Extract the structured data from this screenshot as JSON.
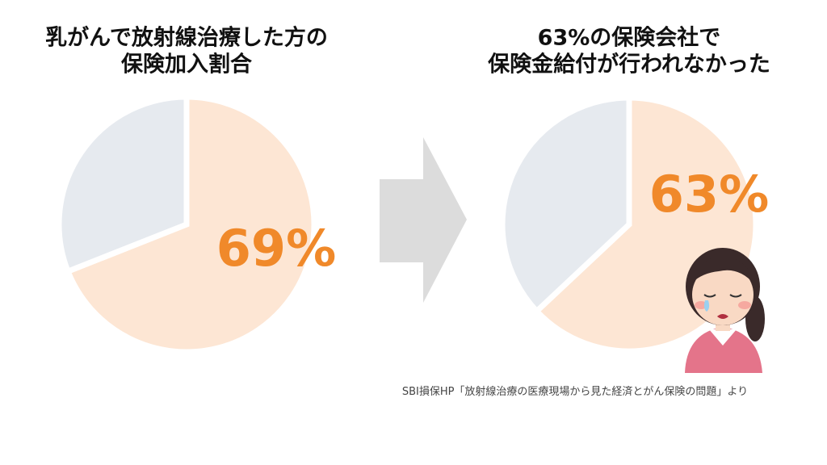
{
  "chart_data": [
    {
      "type": "pie",
      "title": [
        "乳がんで放射線治療した方の",
        "保険加入割合"
      ],
      "values": [
        69,
        31
      ],
      "value_labels": [
        "69%",
        null
      ],
      "colors": [
        "#fde6d4",
        "#e6eaef"
      ]
    },
    {
      "type": "pie",
      "title": [
        "63%の保険会社で",
        "保険金給付が行われなかった"
      ],
      "values": [
        63,
        37
      ],
      "value_labels": [
        "63%",
        null
      ],
      "colors": [
        "#fde6d4",
        "#e6eaef"
      ]
    }
  ],
  "source": "SBI損保HP「放射線治療の医療現場から見た経済とがん保険の問題」より"
}
